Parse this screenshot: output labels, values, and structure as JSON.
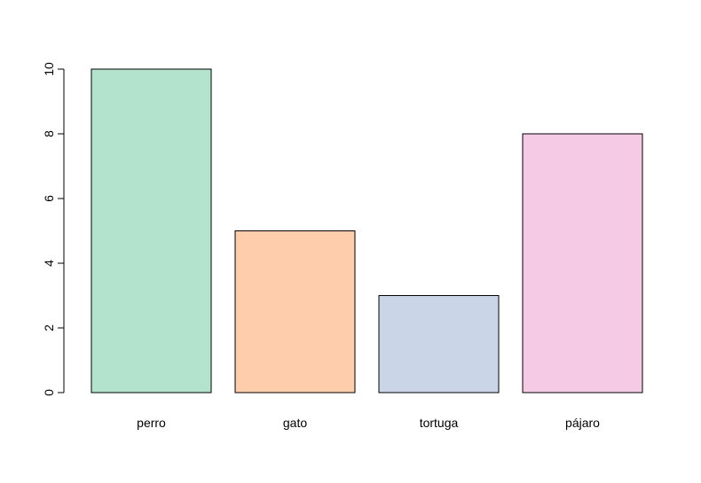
{
  "chart_data": {
    "type": "bar",
    "categories": [
      "perro",
      "gato",
      "tortuga",
      "pájaro"
    ],
    "values": [
      10,
      5,
      3,
      8
    ],
    "colors": [
      "#b3e2cd",
      "#fdcdac",
      "#cbd5e8",
      "#f4cae4"
    ],
    "yticks": [
      "0",
      "2",
      "4",
      "6",
      "8",
      "10"
    ],
    "ylim": [
      0,
      10
    ],
    "grid": false,
    "legend": "none"
  }
}
